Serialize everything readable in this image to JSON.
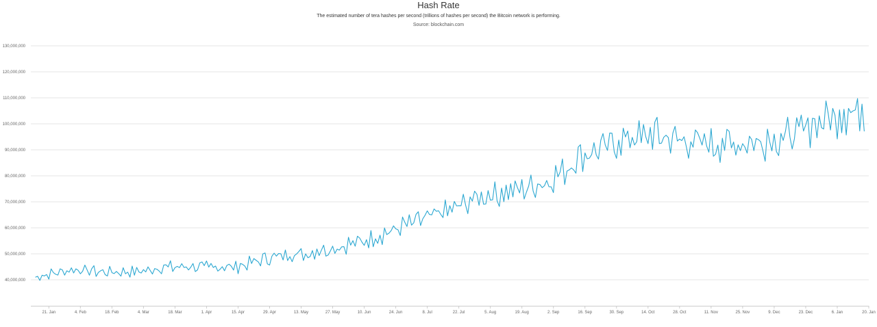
{
  "chart_data": {
    "type": "line",
    "title": "Hash Rate",
    "subtitle": "The estimated number of tera hashes per second (trillions of hashes per second) the Bitcoin network is performing.",
    "source": "Source: blockchain.com",
    "xlabel": "",
    "ylabel": "",
    "ylim": [
      30000000,
      130000000
    ],
    "xlim": [
      "2019-01-13",
      "2020-01-20"
    ],
    "y_ticks": [
      "40,000,000",
      "50,000,000",
      "60,000,000",
      "70,000,000",
      "80,000,000",
      "90,000,000",
      "100,000,000",
      "110,000,000",
      "120,000,000",
      "130,000,000"
    ],
    "x_ticks": [
      "21. Jan",
      "4. Feb",
      "18. Feb",
      "4. Mar",
      "18. Mar",
      "1. Apr",
      "15. Apr",
      "29. Apr",
      "13. May",
      "27. May",
      "10. Jun",
      "24. Jun",
      "8. Jul",
      "22. Jul",
      "5. Aug",
      "19. Aug",
      "2. Sep",
      "16. Sep",
      "30. Sep",
      "14. Oct",
      "28. Oct",
      "11. Nov",
      "25. Nov",
      "9. Dec",
      "23. Dec",
      "6. Jan",
      "20. Jan"
    ],
    "grid": true,
    "legend": "none",
    "line_color": "#2ba7d1",
    "series": [
      {
        "x": [
          "2019-01-15",
          "2019-02-01",
          "2019-02-15",
          "2019-03-01",
          "2019-03-15",
          "2019-04-01",
          "2019-04-15",
          "2019-05-01",
          "2019-05-15",
          "2019-06-01",
          "2019-06-15",
          "2019-07-01",
          "2019-07-15",
          "2019-08-01",
          "2019-08-15",
          "2019-09-01",
          "2019-09-15",
          "2019-10-01",
          "2019-10-15",
          "2019-11-01",
          "2019-11-15",
          "2019-12-01",
          "2019-12-15",
          "2020-01-01",
          "2020-01-15"
        ],
        "values": [
          41000000,
          44000000,
          43000000,
          43000000,
          45000000,
          45000000,
          45000000,
          49000000,
          50000000,
          53000000,
          56000000,
          62000000,
          66000000,
          72000000,
          74000000,
          78000000,
          88000000,
          93000000,
          96000000,
          93000000,
          92000000,
          93000000,
          95000000,
          102000000,
          105000000
        ]
      }
    ]
  }
}
